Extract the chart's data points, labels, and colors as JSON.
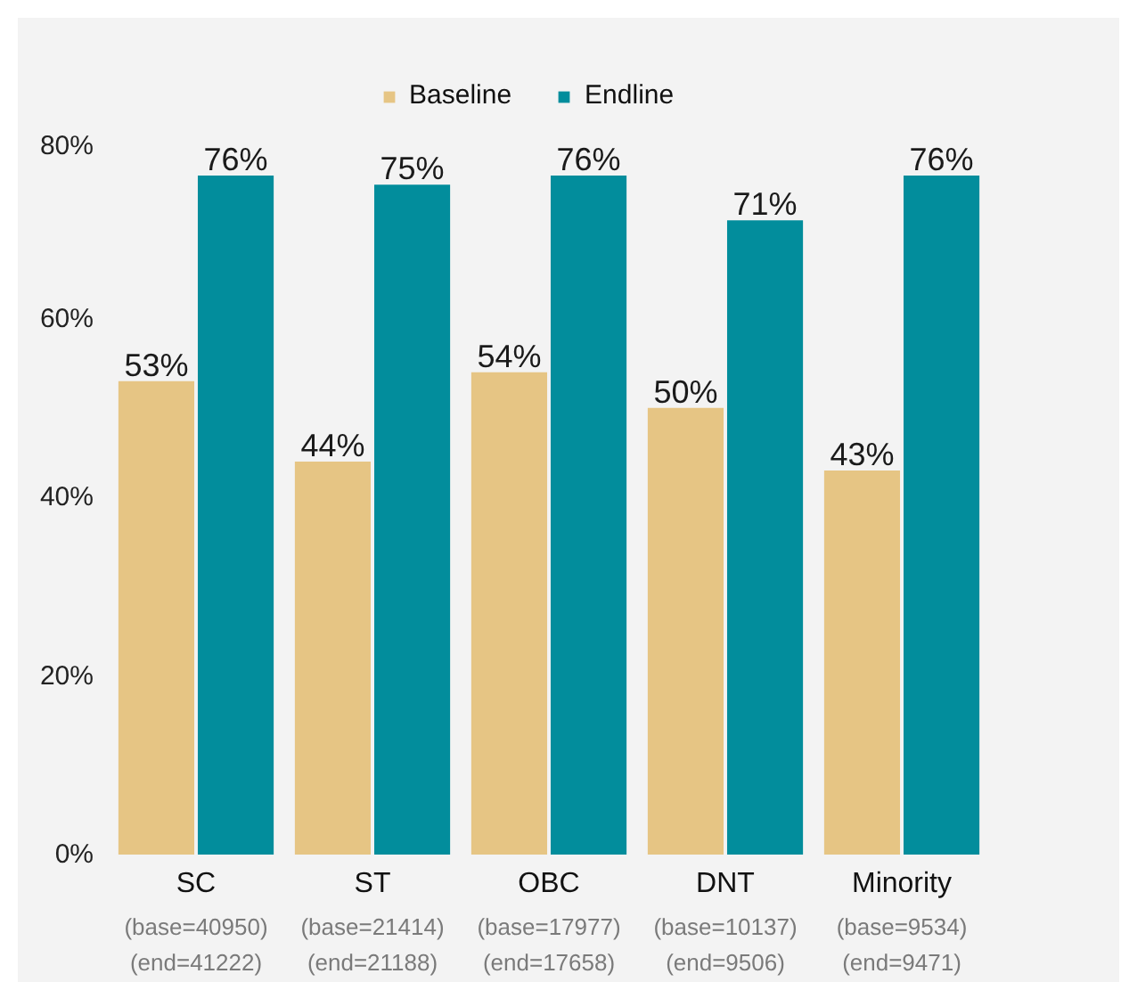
{
  "chart_data": {
    "type": "bar",
    "categories": [
      "SC",
      "ST",
      "OBC",
      "DNT",
      "Minority"
    ],
    "series": [
      {
        "name": "Baseline",
        "color": "#e6c584",
        "values": [
          53,
          44,
          54,
          50,
          43
        ],
        "value_labels": [
          "53%",
          "44%",
          "54%",
          "50%",
          "43%"
        ]
      },
      {
        "name": "Endline",
        "color": "#028d9c",
        "values": [
          76,
          75,
          76,
          71,
          76
        ],
        "value_labels": [
          "76%",
          "75%",
          "76%",
          "71%",
          "76%"
        ]
      }
    ],
    "ylim": [
      0,
      80
    ],
    "yticks": [
      {
        "value": 0,
        "label": "0%"
      },
      {
        "value": 20,
        "label": "20%"
      },
      {
        "value": 40,
        "label": "40%"
      },
      {
        "value": 60,
        "label": "60%"
      },
      {
        "value": 80,
        "label": "80%"
      }
    ],
    "annotations": [
      "(base=40950)",
      "(end=41222)",
      "(base=21414)",
      "(end=21188)",
      "(base=17977)",
      "(end=17658)",
      "(base=10137)",
      "(end=9506)",
      "(base=9534)",
      "(end=9471)"
    ],
    "grid": false,
    "legend": "top"
  }
}
